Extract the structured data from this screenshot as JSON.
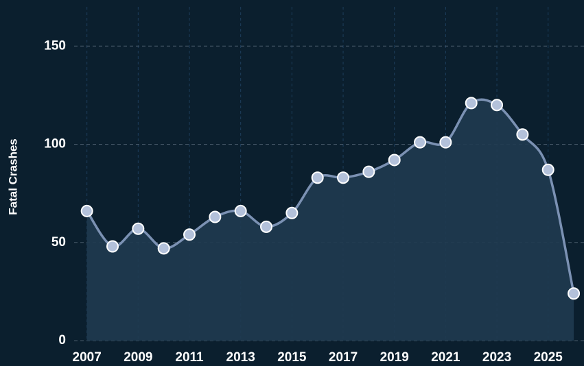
{
  "chart_data": {
    "type": "line",
    "y_label": "Fatal Crashes",
    "x": [
      2007,
      2008,
      2009,
      2010,
      2011,
      2012,
      2013,
      2014,
      2015,
      2016,
      2017,
      2018,
      2019,
      2020,
      2021,
      2022,
      2023,
      2024,
      2025,
      2026
    ],
    "values": [
      66,
      48,
      57,
      47,
      54,
      63,
      66,
      58,
      65,
      83,
      83,
      86,
      92,
      101,
      101,
      121,
      120,
      105,
      87,
      24
    ],
    "color": "#7b91b3",
    "xlim": [
      2006.5,
      2026.4
    ],
    "xticks": [
      2007,
      2009,
      2011,
      2013,
      2015,
      2017,
      2019,
      2021,
      2023,
      2025
    ],
    "ylim": [
      0,
      170
    ],
    "yticks": [
      0,
      50,
      100,
      150
    ],
    "grid": true
  }
}
